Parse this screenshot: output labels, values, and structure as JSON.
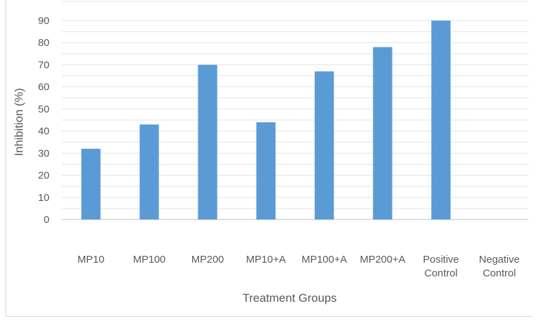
{
  "chart_data": {
    "type": "bar",
    "xlabel": "Treatment Groups",
    "ylabel": "Inhibition (%)",
    "ylim": [
      0,
      90
    ],
    "yticks": [
      "0",
      "10",
      "20",
      "30",
      "40",
      "50",
      "60",
      "70",
      "80",
      "90"
    ],
    "grid": true,
    "legend": "none",
    "bar_color": "#5b9bd5",
    "categories": [
      [
        "MP10"
      ],
      [
        "MP100"
      ],
      [
        "MP200"
      ],
      [
        "MP10+A"
      ],
      [
        "MP100+A"
      ],
      [
        "MP200+A"
      ],
      [
        "Positive",
        "Control"
      ],
      [
        "Negative",
        "Control"
      ]
    ],
    "values": [
      32,
      43,
      70,
      44,
      67,
      78,
      90,
      0
    ]
  }
}
